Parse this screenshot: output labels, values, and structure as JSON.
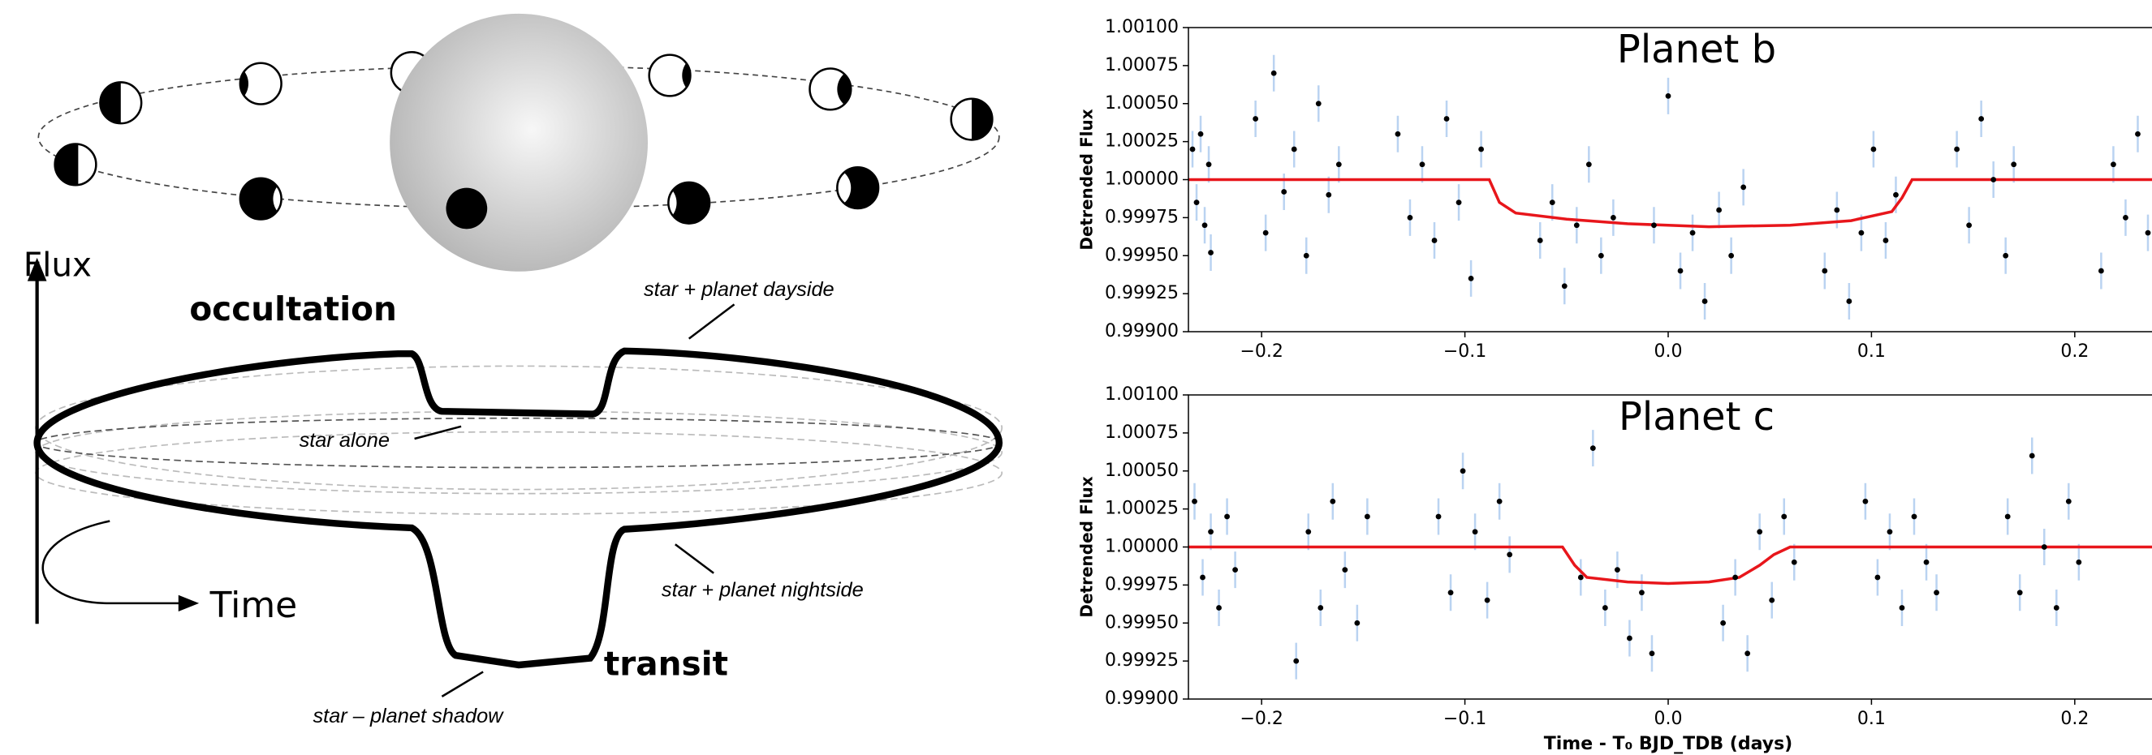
{
  "diagram": {
    "flux_axis": "Flux",
    "time_axis": "Time",
    "occultation": "occultation",
    "transit": "transit",
    "dayside": "star + planet dayside",
    "star_alone": "star alone",
    "nightside": "star + planet nightside",
    "shadow": "star – planet shadow"
  },
  "chart_data": [
    {
      "type": "scatter",
      "title": "Planet b",
      "y_label": "Detrended Flux",
      "xlim": [
        -0.236,
        0.238
      ],
      "ylim": [
        0.999,
        1.001
      ],
      "xticks": [
        {
          "value": -0.2,
          "label": "−0.2"
        },
        {
          "value": -0.1,
          "label": "−0.1"
        },
        {
          "value": 0,
          "label": "0.0"
        },
        {
          "value": 0.1,
          "label": "0.1"
        },
        {
          "value": 0.2,
          "label": "0.2"
        }
      ],
      "yticks": [
        {
          "value": 0.999,
          "label": "0.99900"
        },
        {
          "value": 0.99925,
          "label": "0.99925"
        },
        {
          "value": 0.9995,
          "label": "0.99950"
        },
        {
          "value": 0.99975,
          "label": "0.99975"
        },
        {
          "value": 1.0,
          "label": "1.00000"
        },
        {
          "value": 1.00025,
          "label": "1.00025"
        },
        {
          "value": 1.0005,
          "label": "1.00050"
        },
        {
          "value": 1.00075,
          "label": "1.00075"
        },
        {
          "value": 1.001,
          "label": "1.00100"
        }
      ],
      "points": {
        "color": "#000000",
        "error_color": "#a9c8ee",
        "error": 0.00012,
        "x": [
          -0.234,
          -0.232,
          -0.23,
          -0.228,
          -0.226,
          -0.225,
          -0.203,
          -0.198,
          -0.194,
          -0.189,
          -0.184,
          -0.178,
          -0.172,
          -0.167,
          -0.162,
          -0.133,
          -0.127,
          -0.121,
          -0.115,
          -0.109,
          -0.103,
          -0.097,
          -0.092,
          -0.063,
          -0.057,
          -0.051,
          -0.045,
          -0.039,
          -0.033,
          -0.027,
          -0.007,
          0.0,
          0.006,
          0.012,
          0.018,
          0.025,
          0.031,
          0.037,
          0.077,
          0.083,
          0.089,
          0.095,
          0.101,
          0.107,
          0.112,
          0.142,
          0.148,
          0.154,
          0.16,
          0.166,
          0.17,
          0.213,
          0.219,
          0.225,
          0.231,
          0.236
        ],
        "values": [
          1.0002,
          0.99985,
          1.0003,
          0.9997,
          1.0001,
          0.99952,
          1.0004,
          0.99965,
          1.0007,
          0.99992,
          1.0002,
          0.9995,
          1.0005,
          0.9999,
          1.0001,
          1.0003,
          0.99975,
          1.0001,
          0.9996,
          1.0004,
          0.99985,
          0.99935,
          1.0002,
          0.9996,
          0.99985,
          0.9993,
          0.9997,
          1.0001,
          0.9995,
          0.99975,
          0.9997,
          1.00055,
          0.9994,
          0.99965,
          0.9992,
          0.9998,
          0.9995,
          0.99995,
          0.9994,
          0.9998,
          0.9992,
          0.99965,
          1.0002,
          0.9996,
          0.9999,
          1.0002,
          0.9997,
          1.0004,
          1.0,
          0.9995,
          1.0001,
          0.9994,
          1.0001,
          0.99975,
          1.0003,
          0.99965
        ]
      },
      "model": {
        "color": "#e8161b",
        "x": [
          -0.236,
          -0.088,
          -0.083,
          -0.075,
          -0.05,
          -0.02,
          0.02,
          0.06,
          0.09,
          0.11,
          0.115,
          0.12,
          0.238
        ],
        "values": [
          1.0,
          1.0,
          0.99985,
          0.99978,
          0.99974,
          0.99971,
          0.99969,
          0.9997,
          0.99973,
          0.99979,
          0.99988,
          1.0,
          1.0
        ]
      }
    },
    {
      "type": "scatter",
      "title": "Planet c",
      "y_label": "Detrended Flux",
      "x_label": "Time - T₀ BJD_TDB (days)",
      "xlim": [
        -0.236,
        0.238
      ],
      "ylim": [
        0.999,
        1.001
      ],
      "xticks": [
        {
          "value": -0.2,
          "label": "−0.2"
        },
        {
          "value": -0.1,
          "label": "−0.1"
        },
        {
          "value": 0,
          "label": "0.0"
        },
        {
          "value": 0.1,
          "label": "0.1"
        },
        {
          "value": 0.2,
          "label": "0.2"
        }
      ],
      "yticks": [
        {
          "value": 0.999,
          "label": "0.99900"
        },
        {
          "value": 0.99925,
          "label": "0.99925"
        },
        {
          "value": 0.9995,
          "label": "0.99950"
        },
        {
          "value": 0.99975,
          "label": "0.99975"
        },
        {
          "value": 1.0,
          "label": "1.00000"
        },
        {
          "value": 1.00025,
          "label": "1.00025"
        },
        {
          "value": 1.0005,
          "label": "1.00050"
        },
        {
          "value": 1.00075,
          "label": "1.00075"
        },
        {
          "value": 1.001,
          "label": "1.00100"
        }
      ],
      "points": {
        "color": "#000000",
        "error_color": "#a9c8ee",
        "error": 0.00012,
        "x": [
          -0.233,
          -0.229,
          -0.225,
          -0.221,
          -0.217,
          -0.213,
          -0.183,
          -0.177,
          -0.171,
          -0.165,
          -0.159,
          -0.153,
          -0.148,
          -0.113,
          -0.107,
          -0.101,
          -0.095,
          -0.089,
          -0.083,
          -0.078,
          -0.043,
          -0.037,
          -0.031,
          -0.025,
          -0.019,
          -0.013,
          -0.008,
          0.027,
          0.033,
          0.039,
          0.045,
          0.051,
          0.057,
          0.062,
          0.097,
          0.103,
          0.109,
          0.115,
          0.121,
          0.127,
          0.132,
          0.167,
          0.173,
          0.179,
          0.185,
          0.191,
          0.197,
          0.202
        ],
        "values": [
          1.0003,
          0.9998,
          1.0001,
          0.9996,
          1.0002,
          0.99985,
          0.99925,
          1.0001,
          0.9996,
          1.0003,
          0.99985,
          0.9995,
          1.0002,
          1.0002,
          0.9997,
          1.0005,
          1.0001,
          0.99965,
          1.0003,
          0.99995,
          0.9998,
          1.00065,
          0.9996,
          0.99985,
          0.9994,
          0.9997,
          0.9993,
          0.9995,
          0.9998,
          0.9993,
          1.0001,
          0.99965,
          1.0002,
          0.9999,
          1.0003,
          0.9998,
          1.0001,
          0.9996,
          1.0002,
          0.9999,
          0.9997,
          1.0002,
          0.9997,
          1.0006,
          1.0,
          0.9996,
          1.0003,
          0.9999
        ]
      },
      "model": {
        "color": "#e8161b",
        "x": [
          -0.236,
          -0.052,
          -0.046,
          -0.04,
          -0.02,
          0.0,
          0.02,
          0.035,
          0.045,
          0.052,
          0.06,
          0.238
        ],
        "values": [
          1.0,
          1.0,
          0.99988,
          0.9998,
          0.99977,
          0.99976,
          0.99977,
          0.9998,
          0.99988,
          0.99995,
          1.0,
          1.0
        ]
      }
    }
  ]
}
